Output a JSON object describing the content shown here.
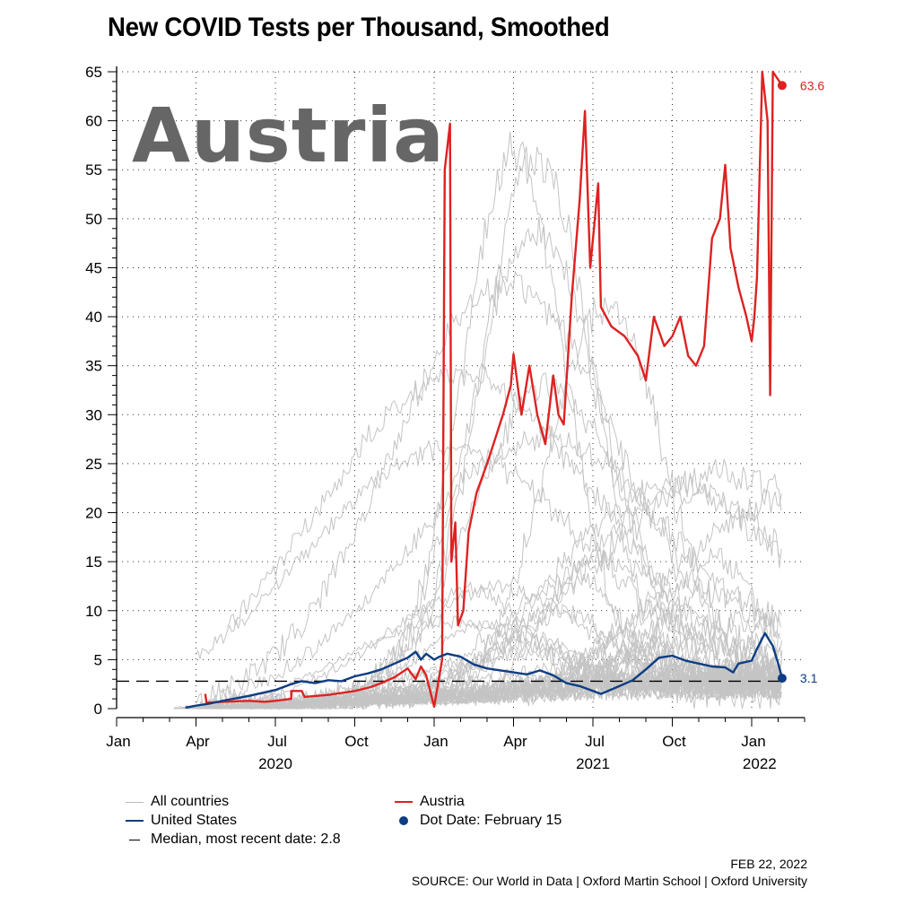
{
  "chart_data": {
    "type": "line",
    "title": "New COVID Tests per Thousand, Smoothed",
    "country_label": "Austria",
    "xlabel": "",
    "ylabel": "",
    "ylim": [
      0,
      65
    ],
    "yticks": [
      0,
      5,
      10,
      15,
      20,
      25,
      30,
      35,
      40,
      45,
      50,
      55,
      60,
      65
    ],
    "x_unit": "months since Jan 1, 2020",
    "xlim": [
      0,
      26
    ],
    "xticks": [
      {
        "x": 0,
        "label": "Jan"
      },
      {
        "x": 3,
        "label": "Apr"
      },
      {
        "x": 6,
        "label": "Jul"
      },
      {
        "x": 9,
        "label": "Oct"
      },
      {
        "x": 12,
        "label": "Jan"
      },
      {
        "x": 15,
        "label": "Apr"
      },
      {
        "x": 18,
        "label": "Jul"
      },
      {
        "x": 21,
        "label": "Oct"
      },
      {
        "x": 24,
        "label": "Jan"
      }
    ],
    "year_labels": [
      {
        "x": 6,
        "label": "2020"
      },
      {
        "x": 18,
        "label": "2021"
      },
      {
        "x": 24.3,
        "label": "2022"
      }
    ],
    "grid": true,
    "median": {
      "value": 2.8,
      "label": "Median, most recent date: 2.8"
    },
    "series": [
      {
        "name": "Austria",
        "color": "#dd2222",
        "end_label": "63.6",
        "points": [
          [
            3.35,
            1.5
          ],
          [
            3.4,
            0.6
          ],
          [
            4,
            0.7
          ],
          [
            5,
            0.8
          ],
          [
            5.6,
            0.7
          ],
          [
            6,
            0.8
          ],
          [
            6.6,
            1.0
          ],
          [
            6.6,
            1.8
          ],
          [
            7,
            1.8
          ],
          [
            7.1,
            1.2
          ],
          [
            8,
            1.4
          ],
          [
            9,
            1.8
          ],
          [
            9.6,
            2.2
          ],
          [
            10,
            2.6
          ],
          [
            10.5,
            3.2
          ],
          [
            11,
            4.1
          ],
          [
            11.3,
            3.0
          ],
          [
            11.5,
            4.3
          ],
          [
            11.7,
            3.4
          ],
          [
            12,
            0.2
          ],
          [
            12.3,
            5.0
          ],
          [
            12.4,
            55.0
          ],
          [
            12.6,
            59.7
          ],
          [
            12.65,
            15.0
          ],
          [
            12.8,
            19.0
          ],
          [
            12.9,
            8.5
          ],
          [
            13.1,
            10.0
          ],
          [
            13.3,
            18.0
          ],
          [
            13.6,
            22.0
          ],
          [
            14,
            25.0
          ],
          [
            14.3,
            27.5
          ],
          [
            14.6,
            30.0
          ],
          [
            14.9,
            33.0
          ],
          [
            15,
            36.2
          ],
          [
            15.3,
            30.0
          ],
          [
            15.6,
            35.0
          ],
          [
            15.9,
            30.0
          ],
          [
            16.2,
            27.0
          ],
          [
            16.5,
            34.0
          ],
          [
            16.7,
            30.0
          ],
          [
            16.9,
            29.0
          ],
          [
            17.2,
            42.0
          ],
          [
            17.5,
            52.0
          ],
          [
            17.7,
            61.0
          ],
          [
            17.9,
            45.0
          ],
          [
            18.2,
            53.6
          ],
          [
            18.3,
            41.0
          ],
          [
            18.7,
            39.0
          ],
          [
            19.2,
            38.0
          ],
          [
            19.7,
            36.0
          ],
          [
            20,
            33.5
          ],
          [
            20.3,
            40.0
          ],
          [
            20.7,
            37.0
          ],
          [
            21,
            38.0
          ],
          [
            21.3,
            40.0
          ],
          [
            21.6,
            36.0
          ],
          [
            21.9,
            35.0
          ],
          [
            22.2,
            37.0
          ],
          [
            22.5,
            48.0
          ],
          [
            22.8,
            50.0
          ],
          [
            23.0,
            55.5
          ],
          [
            23.2,
            47.0
          ],
          [
            23.5,
            43.0
          ],
          [
            23.8,
            40.0
          ],
          [
            24.0,
            37.5
          ],
          [
            24.1,
            40.0
          ],
          [
            24.2,
            44.0
          ],
          [
            24.4,
            65.0
          ],
          [
            24.6,
            60.0
          ],
          [
            24.7,
            32.0
          ],
          [
            24.8,
            65.0
          ],
          [
            25.15,
            63.6
          ]
        ],
        "dot": [
          25.15,
          63.6
        ]
      },
      {
        "name": "United States",
        "color": "#0d3d82",
        "end_label": "3.1",
        "points": [
          [
            2.6,
            0.1
          ],
          [
            3,
            0.3
          ],
          [
            3.5,
            0.5
          ],
          [
            4,
            0.8
          ],
          [
            5,
            1.3
          ],
          [
            6,
            1.9
          ],
          [
            6.6,
            2.5
          ],
          [
            7,
            2.8
          ],
          [
            7.5,
            2.6
          ],
          [
            8,
            2.9
          ],
          [
            8.5,
            2.8
          ],
          [
            9,
            3.3
          ],
          [
            9.5,
            3.6
          ],
          [
            10,
            4.0
          ],
          [
            10.5,
            4.6
          ],
          [
            11,
            5.2
          ],
          [
            11.3,
            5.8
          ],
          [
            11.5,
            5.0
          ],
          [
            11.7,
            5.6
          ],
          [
            12,
            5.0
          ],
          [
            12.2,
            5.3
          ],
          [
            12.5,
            5.6
          ],
          [
            13,
            5.3
          ],
          [
            13.5,
            4.5
          ],
          [
            14,
            4.1
          ],
          [
            15,
            3.7
          ],
          [
            15.5,
            3.5
          ],
          [
            16,
            3.9
          ],
          [
            16.5,
            3.4
          ],
          [
            17,
            2.6
          ],
          [
            17.5,
            2.3
          ],
          [
            18,
            1.8
          ],
          [
            18.3,
            1.5
          ],
          [
            19,
            2.3
          ],
          [
            19.5,
            2.9
          ],
          [
            20,
            4.0
          ],
          [
            20.5,
            5.2
          ],
          [
            21,
            5.4
          ],
          [
            21.5,
            4.9
          ],
          [
            22,
            4.6
          ],
          [
            22.5,
            4.3
          ],
          [
            23,
            4.2
          ],
          [
            23.3,
            3.7
          ],
          [
            23.5,
            4.6
          ],
          [
            24,
            4.9
          ],
          [
            24.2,
            6.1
          ],
          [
            24.5,
            7.7
          ],
          [
            24.8,
            6.4
          ],
          [
            25,
            4.6
          ],
          [
            25.15,
            3.1
          ]
        ],
        "dot": [
          25.15,
          3.1
        ]
      }
    ],
    "background_series_label": "All countries"
  },
  "legend": {
    "all_countries": "All countries",
    "austria": "Austria",
    "united_states": "United States",
    "dot_date": "Dot Date: February 15",
    "median": "Median, most recent date: 2.8"
  },
  "footer": {
    "date": "FEB 22, 2022",
    "source": "SOURCE: Our World in Data | Oxford Martin School | Oxford University"
  },
  "colors": {
    "austria": "#dd2222",
    "united_states": "#0d3d82",
    "background_lines": "#c4c4c4",
    "country_label": "#666666"
  }
}
